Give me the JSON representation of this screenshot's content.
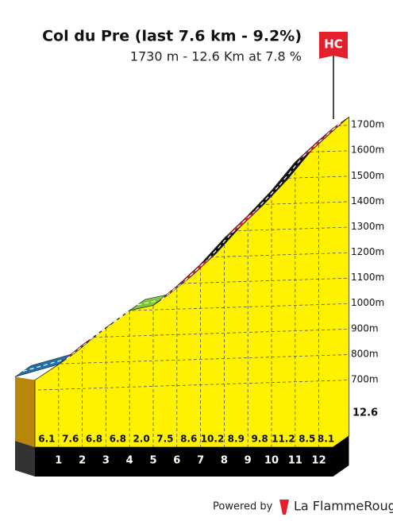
{
  "header": {
    "title": "Col du Pre (last 7.6 km - 9.2%)",
    "subtitle": "1730 m - 12.6 Km at 7.8 %",
    "category": "HC"
  },
  "chart_data": {
    "type": "climb-profile",
    "x": [
      0,
      1,
      2,
      3,
      4,
      5,
      6,
      7,
      8,
      9,
      10,
      11,
      12,
      12.6
    ],
    "values": [
      742,
      803,
      879,
      947,
      1015,
      1035,
      1110,
      1196,
      1298,
      1387,
      1485,
      1597,
      1682,
      1730
    ],
    "gradients": [
      6.1,
      7.6,
      6.8,
      6.8,
      2.0,
      7.5,
      8.6,
      10.2,
      8.9,
      9.8,
      11.2,
      8.5,
      8.1
    ],
    "gradient_labels": [
      "6.1",
      "7.6",
      "6.8",
      "6.8",
      "2.0",
      "7.5",
      "8.6",
      "10.2",
      "8.9",
      "9.8",
      "11.2",
      "8.5",
      "8.1"
    ],
    "segment_colors": [
      "#1f6fa8",
      "#e3202b",
      "#e3202b",
      "#e3202b",
      "#7ec63a",
      "#e3202b",
      "#e3202b",
      "#111111",
      "#e3202b",
      "#111111",
      "#111111",
      "#e3202b",
      "#e3202b"
    ],
    "face_color": "#fff200",
    "ylim": [
      600,
      1800
    ],
    "yticks": [
      {
        "value": 700,
        "label": "700m"
      },
      {
        "value": 800,
        "label": "800m"
      },
      {
        "value": 900,
        "label": "900m"
      },
      {
        "value": 1000,
        "label": "1000m"
      },
      {
        "value": 1100,
        "label": "1100m"
      },
      {
        "value": 1200,
        "label": "1200m"
      },
      {
        "value": 1300,
        "label": "1300m"
      },
      {
        "value": 1400,
        "label": "1400m"
      },
      {
        "value": 1500,
        "label": "1500m"
      },
      {
        "value": 1600,
        "label": "1600m"
      },
      {
        "value": 1700,
        "label": "1700m"
      }
    ],
    "grid": true
  },
  "footer": {
    "powered_by": "Powered by",
    "brand": "La FlammeRouge"
  }
}
